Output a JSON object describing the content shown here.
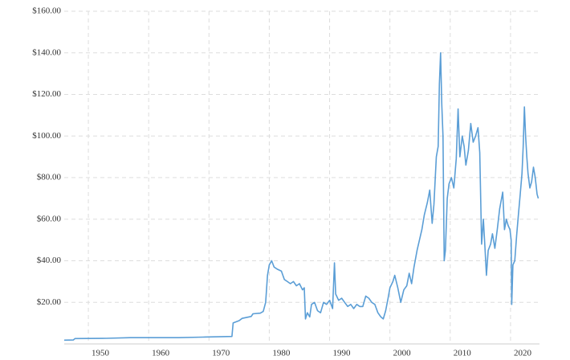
{
  "chart_data": {
    "type": "line",
    "x": [
      1946,
      1947.5,
      1947.8,
      1953,
      1957,
      1965,
      1969,
      1973.8,
      1974,
      1975,
      1975.5,
      1977,
      1977.3,
      1978.5,
      1979,
      1979.4,
      1979.7,
      1980,
      1980.4,
      1980.8,
      1981.3,
      1982,
      1982.5,
      1983,
      1983.5,
      1984,
      1984.5,
      1985,
      1985.5,
      1985.8,
      1986,
      1986.3,
      1986.7,
      1987,
      1987.5,
      1988,
      1988.5,
      1989,
      1989.5,
      1990,
      1990.5,
      1990.8,
      1991,
      1991.5,
      1992,
      1992.5,
      1993,
      1993.5,
      1994,
      1994.5,
      1995,
      1995.5,
      1996,
      1996.5,
      1997,
      1997.5,
      1998,
      1998.5,
      1998.9,
      1999.3,
      1999.7,
      2000,
      2000.5,
      2000.8,
      2001.3,
      2001.8,
      2002.3,
      2002.8,
      2003.2,
      2003.6,
      2004,
      2004.5,
      2004.9,
      2005.3,
      2005.7,
      2006.2,
      2006.6,
      2007,
      2007.3,
      2007.7,
      2008,
      2008.2,
      2008.4,
      2008.6,
      2008.8,
      2009,
      2009.2,
      2009.5,
      2009.8,
      2010.2,
      2010.6,
      2011,
      2011.3,
      2011.6,
      2012,
      2012.3,
      2012.6,
      2013,
      2013.4,
      2013.8,
      2014.2,
      2014.6,
      2014.9,
      2015.2,
      2015.5,
      2015.8,
      2016,
      2016.3,
      2016.7,
      2017,
      2017.4,
      2017.8,
      2018.2,
      2018.7,
      2019,
      2019.3,
      2019.6,
      2019.9,
      2020.1,
      2020.2,
      2020.4,
      2020.7,
      2021,
      2021.3,
      2021.6,
      2021.9,
      2022.1,
      2022.3,
      2022.5,
      2022.7,
      2022.9,
      2023.2,
      2023.5,
      2023.8,
      2024.1,
      2024.4,
      2024.6
    ],
    "values": [
      1.8,
      1.9,
      2.6,
      2.7,
      3.0,
      3.0,
      3.3,
      3.6,
      10.1,
      11.2,
      12.3,
      13.2,
      14.5,
      14.8,
      15.6,
      20,
      33,
      38,
      40,
      37,
      36,
      35,
      31,
      30,
      29,
      30,
      28,
      29,
      26,
      27,
      12,
      15,
      13,
      19,
      20,
      16,
      15,
      20,
      19,
      21,
      17,
      39,
      24,
      21,
      22,
      20,
      18,
      19,
      17,
      19,
      18,
      18,
      23,
      22,
      20,
      19,
      15,
      13,
      12,
      16,
      22,
      27,
      30,
      33,
      27,
      20,
      26,
      28,
      34,
      29,
      37,
      45,
      50,
      55,
      62,
      68,
      74,
      58,
      67,
      90,
      95,
      125,
      140,
      115,
      100,
      40,
      45,
      70,
      77,
      80,
      75,
      89,
      113,
      90,
      100,
      95,
      86,
      93,
      106,
      97,
      100,
      104,
      92,
      48,
      60,
      44,
      33,
      45,
      48,
      53,
      46,
      55,
      65,
      73,
      55,
      60,
      57,
      55,
      50,
      19,
      38,
      40,
      52,
      62,
      72,
      82,
      95,
      114,
      100,
      90,
      82,
      75,
      78,
      85,
      80,
      72,
      70
    ],
    "color": "#5b9ed6",
    "xlim": [
      1946,
      2024.8
    ],
    "ylim": [
      0,
      160
    ],
    "xticks": [
      1950,
      1960,
      1970,
      1980,
      1990,
      2000,
      2010,
      2020
    ],
    "yticks": [
      {
        "value": 20,
        "label": "$20.00"
      },
      {
        "value": 40,
        "label": "$40.00"
      },
      {
        "value": 60,
        "label": "$60.00"
      },
      {
        "value": 80,
        "label": "$80.00"
      },
      {
        "value": 100,
        "label": "$100.00"
      },
      {
        "value": 120,
        "label": "$120.00"
      },
      {
        "value": 140,
        "label": "$140.00"
      },
      {
        "value": 160,
        "label": "$160.00"
      }
    ],
    "grid": true
  }
}
